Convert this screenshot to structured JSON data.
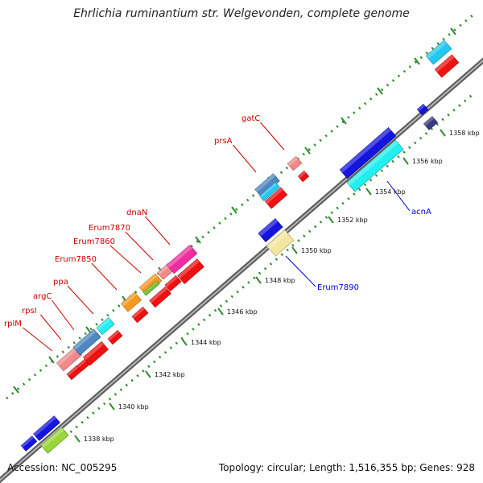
{
  "title": "Ehrlichia ruminantium str. Welgevonden, complete genome",
  "footer": {
    "accession": "Accession: NC_005295",
    "summary": "Topology: circular; Length: 1,516,355 bp; Genes: 928"
  },
  "colors": {
    "backbone": "#8a8a8a",
    "tick": "#2e8b2e",
    "label_red": "#cc0000",
    "label_blue": "#0000cc"
  },
  "ticks": [
    {
      "label": "1338 kbp"
    },
    {
      "label": "1340 kbp"
    },
    {
      "label": "1342 kbp"
    },
    {
      "label": "1344 kbp"
    },
    {
      "label": "1346 kbp"
    },
    {
      "label": "1348 kbp"
    },
    {
      "label": "1350 kbp"
    },
    {
      "label": "1352 kbp"
    },
    {
      "label": "1354 kbp"
    },
    {
      "label": "1356 kbp"
    },
    {
      "label": "1358 kbp"
    }
  ],
  "gene_labels": [
    {
      "name": "rplM",
      "color": "#cc0000"
    },
    {
      "name": "rpsI",
      "color": "#cc0000"
    },
    {
      "name": "argC",
      "color": "#cc0000"
    },
    {
      "name": "ppa",
      "color": "#cc0000"
    },
    {
      "name": "Erum7850",
      "color": "#cc0000"
    },
    {
      "name": "Erum7860",
      "color": "#cc0000"
    },
    {
      "name": "Erum7870",
      "color": "#cc0000"
    },
    {
      "name": "dnaN",
      "color": "#cc0000"
    },
    {
      "name": "prsA",
      "color": "#cc0000"
    },
    {
      "name": "gatC",
      "color": "#cc0000"
    },
    {
      "name": "Erum7890",
      "color": "#0000cc"
    },
    {
      "name": "acnA",
      "color": "#0000cc"
    }
  ]
}
